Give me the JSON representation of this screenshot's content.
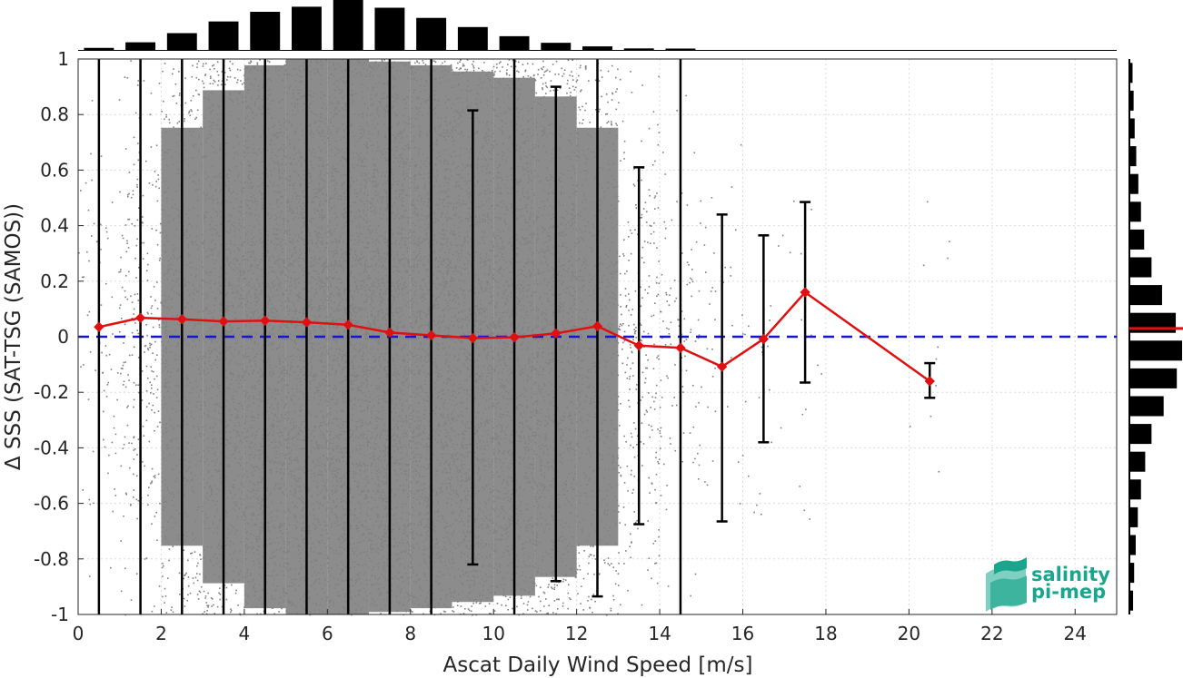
{
  "chart_data": {
    "type": "scatter",
    "xlabel": "Ascat Daily Wind Speed [m/s]",
    "ylabel": "Δ SSS (SAT-TSG (SAMOS))",
    "xlim": [
      0,
      25
    ],
    "ylim": [
      -1,
      1
    ],
    "xticks": [
      "0",
      "2",
      "4",
      "6",
      "8",
      "10",
      "12",
      "14",
      "16",
      "18",
      "20",
      "22",
      "24"
    ],
    "yticks": [
      "-1",
      "-0.8",
      "-0.6",
      "-0.4",
      "-0.2",
      "0",
      "0.2",
      "0.4",
      "0.6",
      "0.8",
      "1"
    ],
    "grid": true,
    "zero_line": {
      "y": 0,
      "color": "#1515d6",
      "style": "dashed"
    },
    "mean_series": {
      "color": "#e01010",
      "x": [
        0.5,
        1.5,
        2.5,
        3.5,
        4.5,
        5.5,
        6.5,
        7.5,
        8.5,
        9.5,
        10.5,
        11.5,
        12.5,
        13.5,
        14.5,
        15.5,
        16.5,
        17.5,
        20.5
      ],
      "y": [
        0.035,
        0.068,
        0.063,
        0.055,
        0.058,
        0.052,
        0.043,
        0.015,
        0.005,
        -0.005,
        -0.002,
        0.012,
        0.038,
        -0.032,
        -0.04,
        -0.108,
        -0.008,
        0.16,
        -0.16
      ],
      "err_low": [
        -1,
        -1,
        -1,
        -1,
        -1,
        -1,
        -1,
        -1,
        -1,
        -0.82,
        -1,
        -0.88,
        -0.935,
        -0.675,
        -1,
        -0.665,
        -0.38,
        -0.165,
        -0.22
      ],
      "err_high": [
        1,
        1,
        1,
        1,
        1,
        1,
        1,
        1,
        1,
        0.815,
        1,
        0.9,
        1,
        0.61,
        1,
        0.44,
        0.365,
        0.485,
        -0.095
      ]
    },
    "scatter_color": "#808080",
    "scatter_density": [
      {
        "x": 0.5,
        "frac": 0.05
      },
      {
        "x": 1.5,
        "frac": 0.18
      },
      {
        "x": 2.5,
        "frac": 0.45
      },
      {
        "x": 3.5,
        "frac": 0.75
      },
      {
        "x": 4.5,
        "frac": 0.95
      },
      {
        "x": 5.5,
        "frac": 1.0
      },
      {
        "x": 6.5,
        "frac": 1.0
      },
      {
        "x": 7.5,
        "frac": 0.98
      },
      {
        "x": 8.5,
        "frac": 0.95
      },
      {
        "x": 9.5,
        "frac": 0.9
      },
      {
        "x": 10.5,
        "frac": 0.85
      },
      {
        "x": 11.5,
        "frac": 0.7
      },
      {
        "x": 12.5,
        "frac": 0.45
      },
      {
        "x": 13.5,
        "frac": 0.18
      },
      {
        "x": 14.5,
        "frac": 0.07
      },
      {
        "x": 15.5,
        "frac": 0.02
      },
      {
        "x": 16.5,
        "frac": 0.01
      },
      {
        "x": 17.5,
        "frac": 0.005
      },
      {
        "x": 20.5,
        "frac": 0.003
      }
    ],
    "top_histogram": {
      "x": [
        0.5,
        1.5,
        2.5,
        3.5,
        4.5,
        5.5,
        6.5,
        7.5,
        8.5,
        9.5,
        10.5,
        11.5,
        12.5,
        13.5,
        14.5
      ],
      "values": [
        0.04,
        0.15,
        0.33,
        0.56,
        0.75,
        0.85,
        1.0,
        0.83,
        0.63,
        0.45,
        0.27,
        0.14,
        0.07,
        0.03,
        0.01
      ]
    },
    "right_histogram": {
      "y": [
        0.95,
        0.85,
        0.75,
        0.65,
        0.55,
        0.45,
        0.35,
        0.25,
        0.15,
        0.05,
        -0.05,
        -0.15,
        -0.25,
        -0.35,
        -0.45,
        -0.55,
        -0.65,
        -0.75,
        -0.85,
        -0.95
      ],
      "values": [
        0.06,
        0.08,
        0.1,
        0.13,
        0.17,
        0.22,
        0.28,
        0.42,
        0.62,
        0.88,
        1.0,
        0.9,
        0.65,
        0.42,
        0.3,
        0.22,
        0.16,
        0.12,
        0.09,
        0.07
      ],
      "median_line": {
        "y": 0.03,
        "color": "#e01010"
      }
    }
  },
  "logo": {
    "line1": "salinity",
    "line2": "pi-mep",
    "color": "#1aa68c"
  }
}
